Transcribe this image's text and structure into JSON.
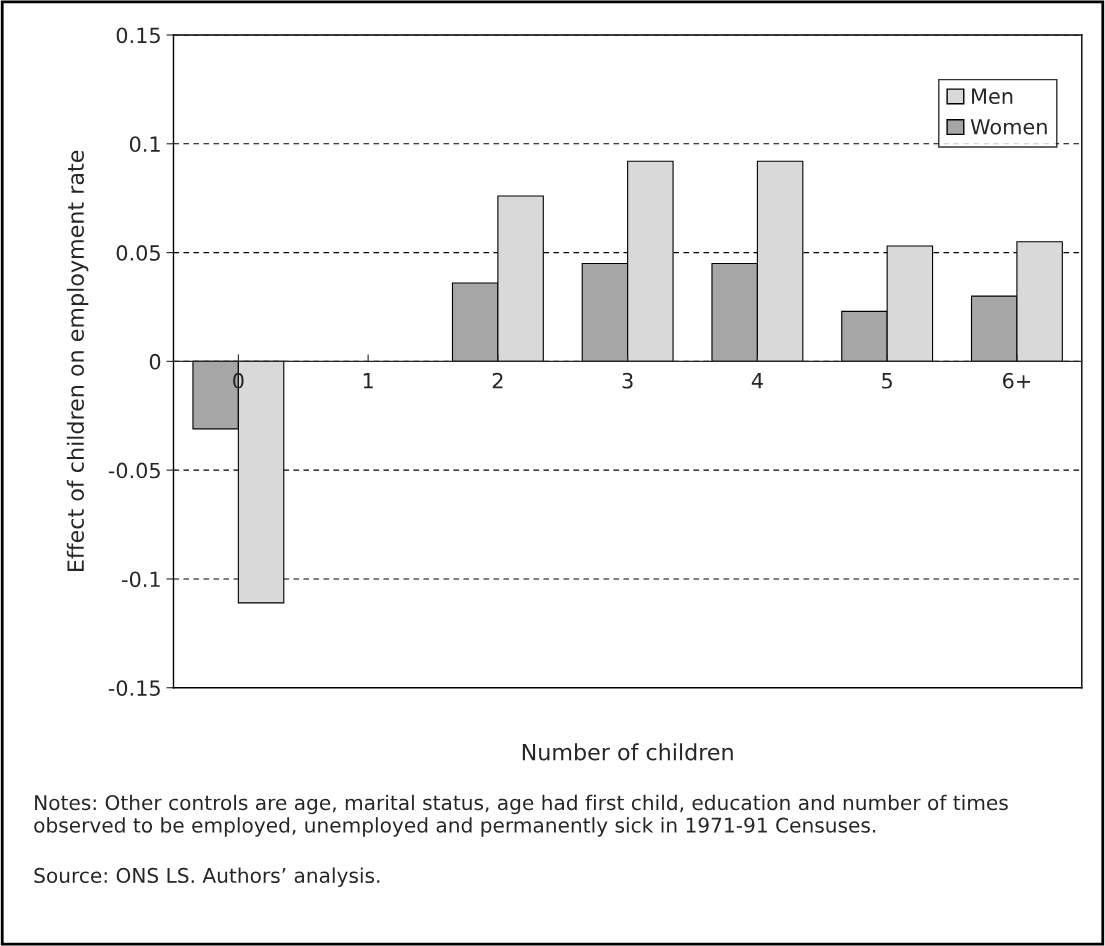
{
  "chart_data": {
    "type": "bar",
    "xlabel": "Number of children",
    "ylabel": "Effect of children on employment rate",
    "categories": [
      "0",
      "1",
      "2",
      "3",
      "4",
      "5",
      "6+"
    ],
    "series": [
      {
        "name": "Women",
        "color": "#a6a6a6",
        "values": [
          -0.031,
          null,
          0.036,
          0.045,
          0.045,
          0.023,
          0.03
        ]
      },
      {
        "name": "Men",
        "color": "#d9d9d9",
        "values": [
          -0.111,
          null,
          0.076,
          0.092,
          0.092,
          0.053,
          0.055
        ]
      }
    ],
    "ylim": [
      -0.15,
      0.15
    ],
    "yticks": [
      -0.15,
      -0.1,
      -0.05,
      0,
      0.05,
      0.1,
      0.15
    ],
    "grid": "y",
    "legend": "top right",
    "annotations": [
      "Notes: Other controls are age, marital status, age had first child, education and number of times observed to be employed, unemployed and permanently sick in 1971-91 Censuses.",
      "Source: ONS LS. Authors’ analysis."
    ]
  }
}
